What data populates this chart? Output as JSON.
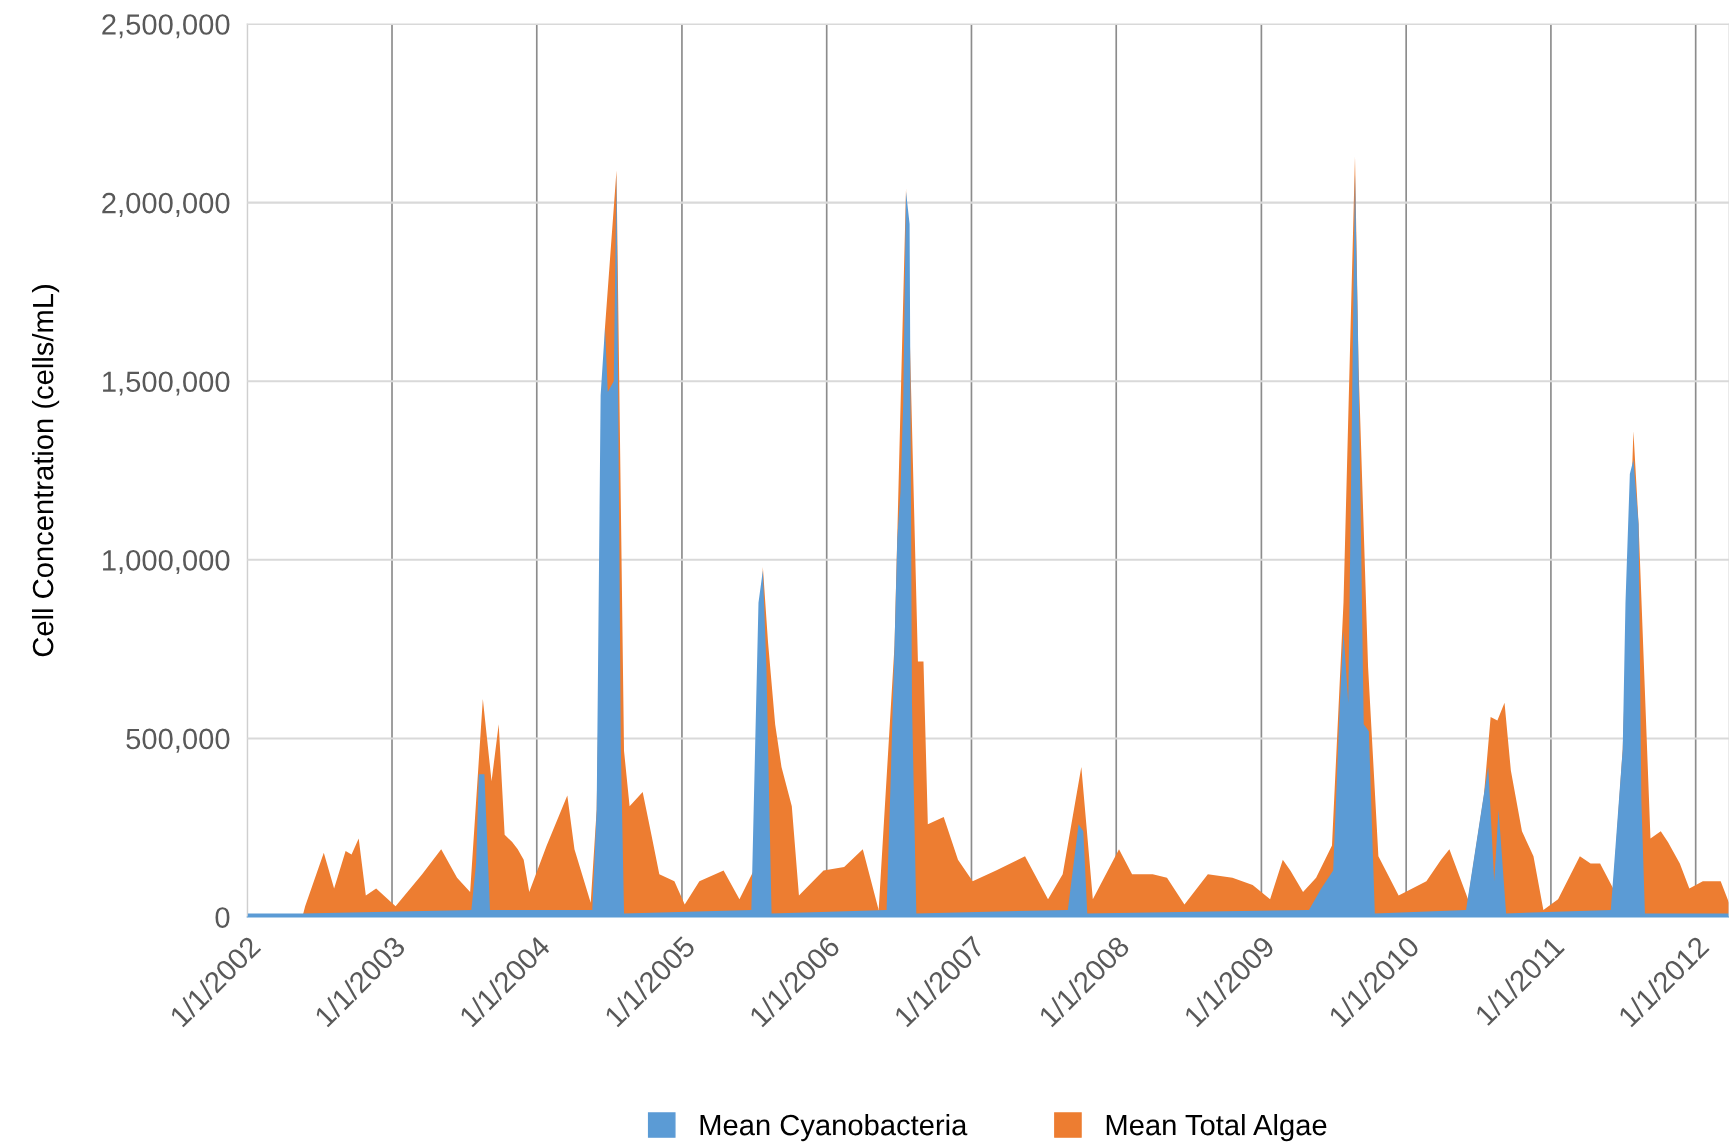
{
  "chart_data": {
    "type": "area",
    "ylabel": "Cell Concentration (cells/mL)",
    "xlim": [
      "2002-01-01",
      "2012-03-25"
    ],
    "xticks": [
      {
        "value": "2002-01-01",
        "label": "1/1/2002"
      },
      {
        "value": "2003-01-01",
        "label": "1/1/2003"
      },
      {
        "value": "2004-01-01",
        "label": "1/1/2004"
      },
      {
        "value": "2005-01-01",
        "label": "1/1/2005"
      },
      {
        "value": "2006-01-01",
        "label": "1/1/2006"
      },
      {
        "value": "2007-01-01",
        "label": "1/1/2007"
      },
      {
        "value": "2008-01-01",
        "label": "1/1/2008"
      },
      {
        "value": "2009-01-01",
        "label": "1/1/2009"
      },
      {
        "value": "2010-01-01",
        "label": "1/1/2010"
      },
      {
        "value": "2011-01-01",
        "label": "1/1/2011"
      },
      {
        "value": "2012-01-01",
        "label": "1/1/2012"
      }
    ],
    "ylim": [
      0,
      2500000
    ],
    "yticks": [
      0,
      {
        "value": 500000,
        "label": "500,000"
      },
      {
        "value": 1000000,
        "label": "1,000,000"
      },
      {
        "value": 1500000,
        "label": "1,500,000"
      },
      {
        "value": 2000000,
        "label": "2,000,000"
      },
      {
        "value": 2500000,
        "label": "2,500,000"
      }
    ],
    "grid": true,
    "legend": "bottom",
    "series": [
      {
        "name": "Mean Cyanobacteria",
        "color": "#5b9bd5",
        "x": [
          "2002-01-01",
          "2002-05-20",
          "2003-07-20",
          "2003-08-01",
          "2003-08-08",
          "2003-08-22",
          "2003-09-05",
          "2004-05-20",
          "2004-05-31",
          "2004-06-10",
          "2004-06-21",
          "2004-06-28",
          "2004-07-13",
          "2004-07-20",
          "2004-07-31",
          "2004-08-08",
          "2005-06-25",
          "2005-07-13",
          "2005-07-24",
          "2005-08-02",
          "2005-08-15",
          "2006-06-01",
          "2006-06-12",
          "2006-06-21",
          "2006-06-28",
          "2006-07-06",
          "2006-07-13",
          "2006-07-20",
          "2006-07-29",
          "2006-08-04",
          "2006-08-15",
          "2007-09-01",
          "2007-09-28",
          "2007-10-10",
          "2007-10-20",
          "2009-05-01",
          "2009-06-01",
          "2009-07-01",
          "2009-07-18",
          "2009-07-27",
          "2009-08-08",
          "2009-08-25",
          "2009-09-03",
          "2009-09-16",
          "2009-09-29",
          "2009-10-14",
          "2010-06-01",
          "2010-07-14",
          "2010-07-27",
          "2010-08-11",
          "2010-08-22",
          "2010-09-10",
          "2011-06-01",
          "2011-07-01",
          "2011-07-08",
          "2011-07-19",
          "2011-07-28",
          "2011-08-10",
          "2011-08-17",
          "2011-08-26",
          "2012-03-25"
        ],
        "values": [
          10000,
          10000,
          20000,
          150000,
          400000,
          400000,
          20000,
          20000,
          300000,
          1460000,
          1650000,
          1470000,
          1500000,
          2080000,
          470000,
          10000,
          20000,
          880000,
          970000,
          700000,
          10000,
          20000,
          410000,
          760000,
          1060000,
          1190000,
          1440000,
          2030000,
          1940000,
          600000,
          10000,
          20000,
          260000,
          240000,
          10000,
          20000,
          80000,
          130000,
          600000,
          800000,
          600000,
          2080000,
          1530000,
          540000,
          520000,
          10000,
          20000,
          330000,
          420000,
          100000,
          300000,
          10000,
          20000,
          470000,
          880000,
          1240000,
          1280000,
          1100000,
          330000,
          10000,
          10000
        ]
      },
      {
        "name": "Mean Total Algae",
        "color": "#ed7d31",
        "x": [
          "2002-01-01",
          "2002-05-20",
          "2002-05-27",
          "2002-07-13",
          "2002-08-08",
          "2002-09-06",
          "2002-09-21",
          "2002-10-09",
          "2002-10-27",
          "2002-11-22",
          "2003-01-10",
          "2003-03-18",
          "2003-05-05",
          "2003-06-14",
          "2003-07-17",
          "2003-08-18",
          "2003-09-09",
          "2003-09-27",
          "2003-10-12",
          "2003-10-31",
          "2003-11-14",
          "2003-11-29",
          "2003-12-13",
          "2004-01-26",
          "2004-03-18",
          "2004-04-05",
          "2004-05-16",
          "2004-05-31",
          "2004-06-21",
          "2004-07-20",
          "2004-08-08",
          "2004-08-22",
          "2004-09-24",
          "2004-10-16",
          "2004-11-05",
          "2004-12-13",
          "2005-01-08",
          "2005-02-14",
          "2005-04-16",
          "2005-05-26",
          "2005-07-01",
          "2005-07-24",
          "2005-08-06",
          "2005-08-24",
          "2005-09-09",
          "2005-10-05",
          "2005-10-23",
          "2005-12-24",
          "2006-02-14",
          "2006-04-02",
          "2006-05-12",
          "2006-06-21",
          "2006-07-20",
          "2006-08-19",
          "2006-09-02",
          "2006-09-13",
          "2006-10-23",
          "2006-11-28",
          "2007-01-04",
          "2007-03-04",
          "2007-05-16",
          "2007-07-13",
          "2007-08-19",
          "2007-10-05",
          "2007-11-03",
          "2008-01-08",
          "2008-02-10",
          "2008-04-02",
          "2008-05-08",
          "2008-06-21",
          "2008-08-19",
          "2008-10-20",
          "2008-12-10",
          "2009-01-23",
          "2009-02-24",
          "2009-03-15",
          "2009-04-16",
          "2009-05-19",
          "2009-06-28",
          "2009-07-27",
          "2009-08-25",
          "2009-09-03",
          "2009-09-27",
          "2009-10-23",
          "2009-12-13",
          "2010-02-21",
          "2010-03-30",
          "2010-04-20",
          "2010-06-06",
          "2010-07-16",
          "2010-08-02",
          "2010-08-19",
          "2010-09-06",
          "2010-09-22",
          "2010-10-20",
          "2010-11-18",
          "2010-12-13",
          "2011-01-19",
          "2011-03-15",
          "2011-04-11",
          "2011-05-05",
          "2011-06-07",
          "2011-07-01",
          "2011-07-28",
          "2011-08-10",
          "2011-09-09",
          "2011-10-05",
          "2011-10-23",
          "2011-11-22",
          "2011-12-16",
          "2012-01-19",
          "2012-03-04",
          "2012-03-25"
        ],
        "values": [
          0,
          0,
          30000,
          180000,
          80000,
          185000,
          175000,
          220000,
          60000,
          80000,
          30000,
          120000,
          190000,
          110000,
          70000,
          610000,
          380000,
          540000,
          230000,
          210000,
          190000,
          160000,
          70000,
          200000,
          340000,
          190000,
          40000,
          300000,
          1650000,
          2090000,
          465000,
          310000,
          350000,
          230000,
          120000,
          100000,
          35000,
          100000,
          130000,
          50000,
          130000,
          980000,
          770000,
          540000,
          420000,
          310000,
          60000,
          130000,
          140000,
          190000,
          20000,
          760000,
          2040000,
          715000,
          715000,
          260000,
          280000,
          160000,
          100000,
          130000,
          170000,
          50000,
          120000,
          420000,
          50000,
          190000,
          120000,
          120000,
          110000,
          35000,
          120000,
          110000,
          90000,
          50000,
          160000,
          130000,
          70000,
          110000,
          200000,
          880000,
          2130000,
          1540000,
          700000,
          170000,
          60000,
          100000,
          160000,
          190000,
          50000,
          340000,
          560000,
          550000,
          600000,
          410000,
          240000,
          170000,
          20000,
          50000,
          170000,
          150000,
          150000,
          80000,
          470000,
          1360000,
          1100000,
          220000,
          240000,
          210000,
          150000,
          80000,
          100000,
          100000,
          40000
        ]
      }
    ]
  }
}
